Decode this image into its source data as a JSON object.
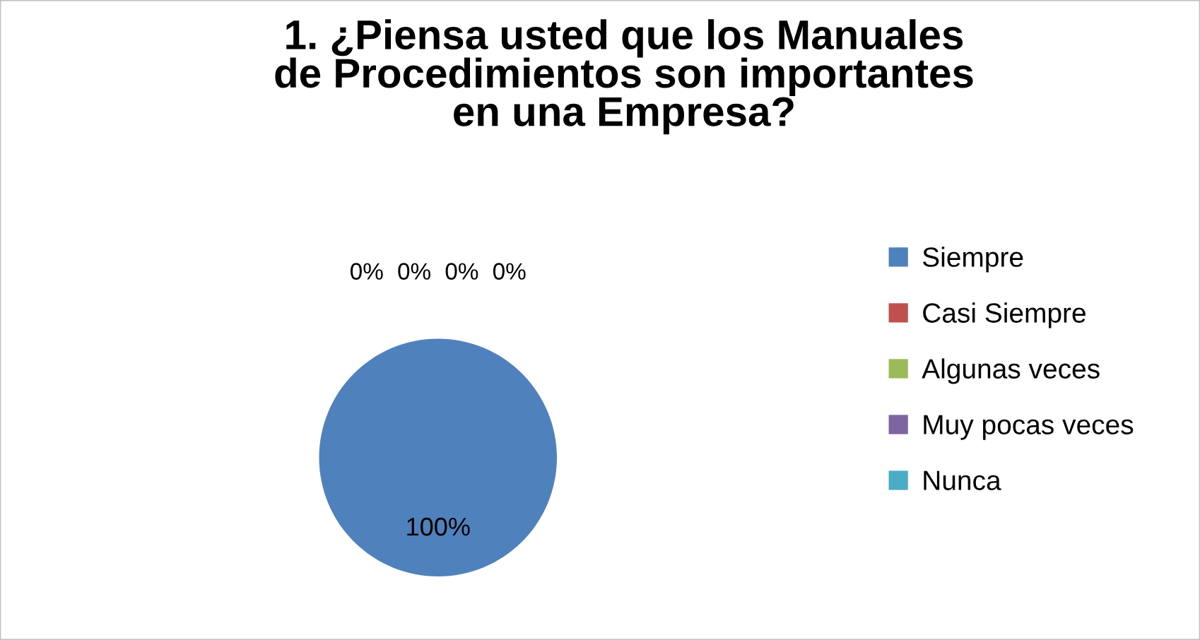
{
  "chart_data": {
    "type": "pie",
    "title": "1. ¿Piensa usted que los Manuales\nde Procedimientos son importantes\nen una Empresa?",
    "categories": [
      "Siempre",
      "Casi Siempre",
      "Algunas veces",
      "Muy pocas veces",
      "Nunca"
    ],
    "values": [
      100,
      0,
      0,
      0,
      0
    ],
    "colors": [
      "#4f81bd",
      "#c0504d",
      "#9bbb59",
      "#8064a2",
      "#4bacc6"
    ],
    "value_labels": [
      "100%",
      "0%",
      "0%",
      "0%",
      "0%"
    ],
    "legend": "right"
  }
}
